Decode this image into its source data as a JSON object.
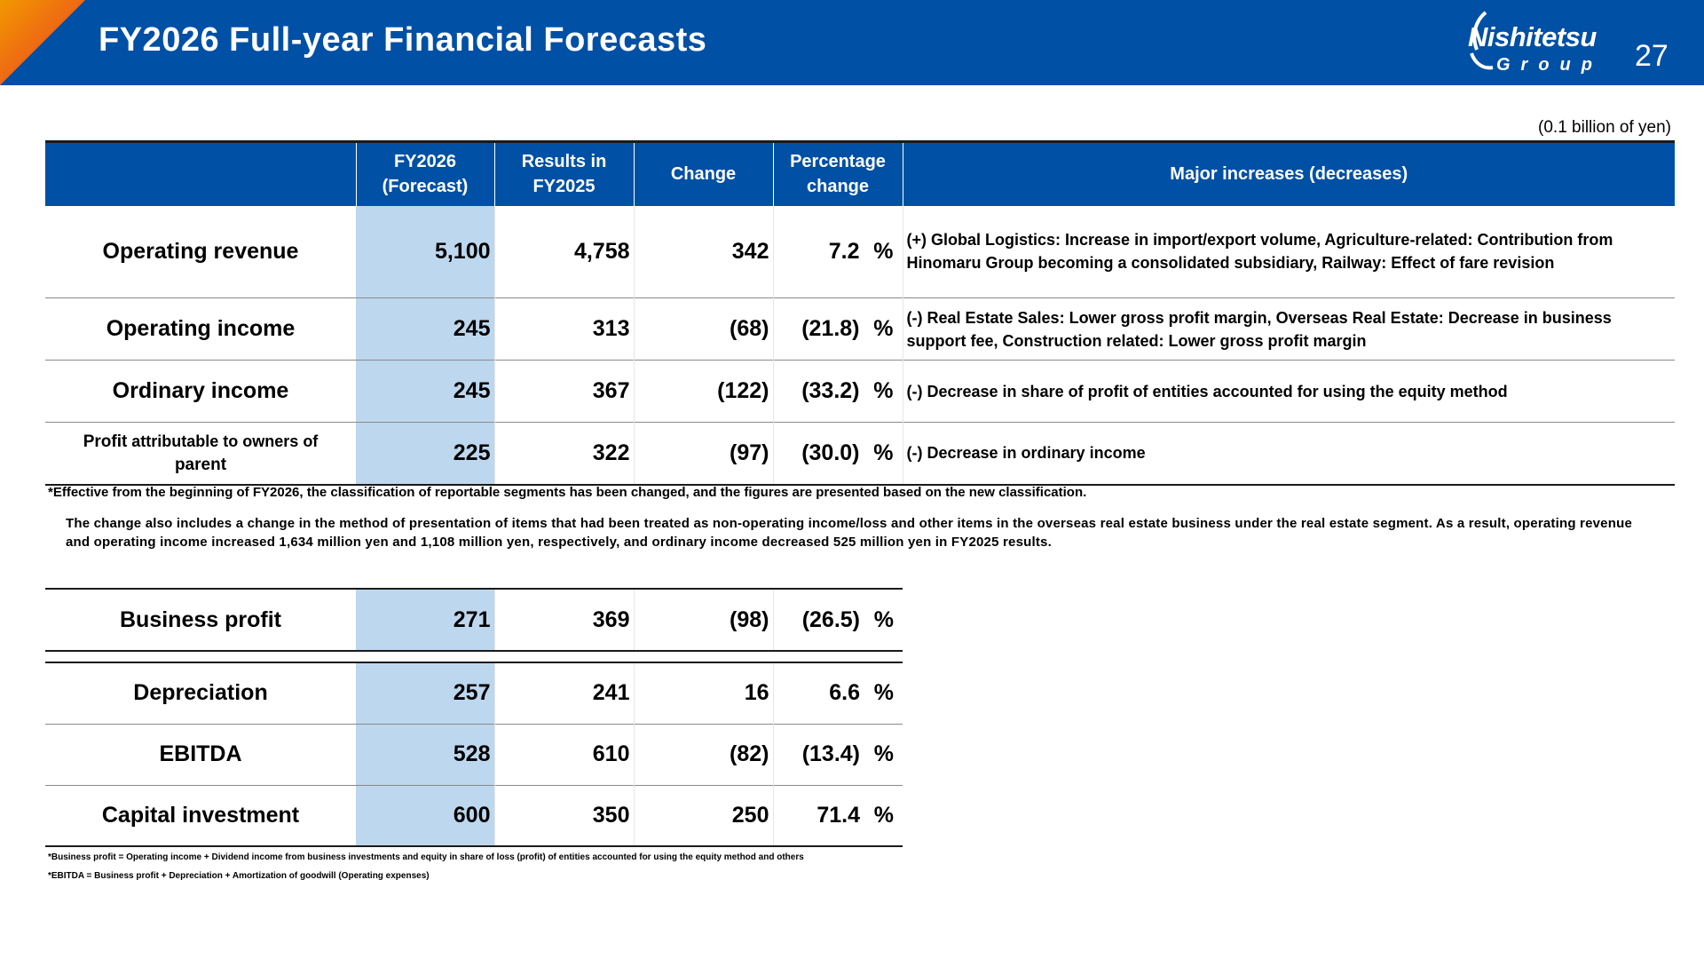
{
  "header": {
    "title": "FY2026 Full-year Financial Forecasts",
    "logo_main": "Nishitetsu",
    "logo_sub": "Group",
    "page_number": "27",
    "colors": {
      "bar": "#0050a5",
      "corner_orange": "#f39800",
      "corner_red": "#e83828"
    }
  },
  "unit": "(0.1 billion of yen)",
  "columns": {
    "forecast": "FY2026\n(Forecast)",
    "results": "Results in\nFY2025",
    "change": "Change",
    "pct_change": "Percentage\nchange",
    "major": "Major increases (decreases)"
  },
  "main_rows": [
    {
      "label": "Operating revenue",
      "forecast": "5,100",
      "results": "4,758",
      "change": "342",
      "pct": "7.2",
      "unit": "%",
      "note": "(+) Global Logistics: Increase in import/export volume, Agriculture-related: Contribution from Hinomaru Group becoming a consolidated subsidiary, Railway: Effect of fare revision"
    },
    {
      "label": "Operating income",
      "forecast": "245",
      "results": "313",
      "change": "(68)",
      "pct": "(21.8)",
      "unit": "%",
      "note": "(-) Real Estate Sales: Lower gross profit margin, Overseas Real Estate: Decrease in business support fee, Construction related: Lower gross profit margin"
    },
    {
      "label": "Ordinary income",
      "forecast": "245",
      "results": "367",
      "change": "(122)",
      "pct": "(33.2)",
      "unit": "%",
      "note": "(-) Decrease in share of profit of entities accounted for using the equity method"
    },
    {
      "label_a": "Profit",
      "label_b": " attributable to owners of",
      "label_c": "parent",
      "forecast": "225",
      "results": "322",
      "change": "(97)",
      "pct": "(30.0)",
      "unit": "%",
      "note": "(-) Decrease in ordinary income"
    }
  ],
  "footnotes": {
    "segment": "*Effective from the beginning of FY2026, the classification of reportable segments has been changed, and the figures are presented based on the new classification.",
    "change_detail": "The change also includes a change in the method of presentation of items that had been treated as non-operating income/loss and other items in the overseas real estate business under the real estate segment. As a result, operating revenue and operating income increased 1,634 million yen and 1,108 million yen, respectively, and ordinary income decreased 525 million yen in FY2025 results.",
    "business_profit": "*Business profit = Operating income + Dividend income from business investments and equity in share of loss (profit) of entities accounted for using the equity method and others",
    "ebitda": "*EBITDA = Business profit + Depreciation + Amortization of goodwill (Operating expenses)"
  },
  "business_profit": {
    "label": "Business profit",
    "forecast": "271",
    "results": "369",
    "change": "(98)",
    "pct": "(26.5)",
    "unit": "%"
  },
  "other_rows": [
    {
      "label": "Depreciation",
      "forecast": "257",
      "results": "241",
      "change": "16",
      "pct": "6.6",
      "unit": "%"
    },
    {
      "label": "EBITDA",
      "forecast": "528",
      "results": "610",
      "change": "(82)",
      "pct": "(13.4)",
      "unit": "%"
    },
    {
      "label": "Capital investment",
      "forecast": "600",
      "results": "350",
      "change": "250",
      "pct": "71.4",
      "unit": "%"
    }
  ]
}
